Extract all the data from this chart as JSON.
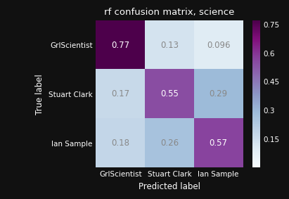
{
  "title": "rf confusion matrix, science",
  "matrix": [
    [
      0.77,
      0.13,
      0.096
    ],
    [
      0.17,
      0.55,
      0.29
    ],
    [
      0.18,
      0.26,
      0.57
    ]
  ],
  "labels": [
    "GrlScientist",
    "Stuart Clark",
    "Ian Sample"
  ],
  "xlabel": "Predicted label",
  "ylabel": "True label",
  "cmap": "BuPu",
  "vmin": 0.0,
  "vmax": 0.77,
  "colorbar_ticks": [
    0.15,
    0.3,
    0.45,
    0.6,
    0.75
  ],
  "text_color_threshold": 0.4,
  "dark_text_color": "#ffffff",
  "light_text_color": "#888888",
  "figure_bg": "#111111",
  "title_fontsize": 9.5,
  "tick_fontsize": 7.5,
  "label_fontsize": 8.5,
  "annot_fontsize": 8.5
}
